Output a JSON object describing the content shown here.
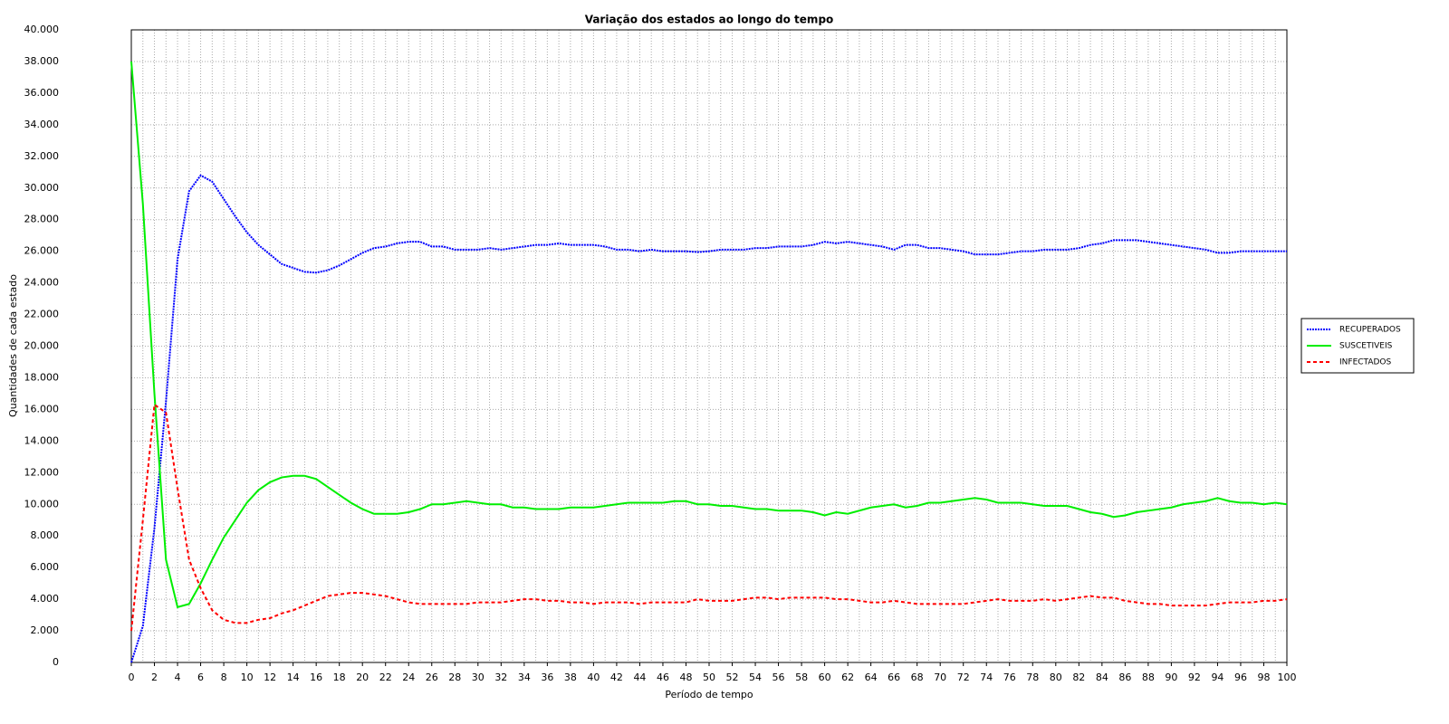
{
  "chart_data": {
    "type": "line",
    "title": "Variação dos estados ao longo do tempo",
    "x_label": "Período de tempo",
    "y_label": "Quantidades de cada estado",
    "x": [
      0,
      1,
      2,
      3,
      4,
      5,
      6,
      7,
      8,
      9,
      10,
      11,
      12,
      13,
      14,
      15,
      16,
      17,
      18,
      19,
      20,
      21,
      22,
      23,
      24,
      25,
      26,
      27,
      28,
      29,
      30,
      31,
      32,
      33,
      34,
      35,
      36,
      37,
      38,
      39,
      40,
      41,
      42,
      43,
      44,
      45,
      46,
      47,
      48,
      49,
      50,
      51,
      52,
      53,
      54,
      55,
      56,
      57,
      58,
      59,
      60,
      61,
      62,
      63,
      64,
      65,
      66,
      67,
      68,
      69,
      70,
      71,
      72,
      73,
      74,
      75,
      76,
      77,
      78,
      79,
      80,
      81,
      82,
      83,
      84,
      85,
      86,
      87,
      88,
      89,
      90,
      91,
      92,
      93,
      94,
      95,
      96,
      97,
      98,
      99,
      100
    ],
    "xlim": [
      0,
      100
    ],
    "xticks": [
      0,
      2,
      4,
      6,
      8,
      10,
      12,
      14,
      16,
      18,
      20,
      22,
      24,
      26,
      28,
      30,
      32,
      34,
      36,
      38,
      40,
      42,
      44,
      46,
      48,
      50,
      52,
      54,
      56,
      58,
      60,
      62,
      64,
      66,
      68,
      70,
      72,
      74,
      76,
      78,
      80,
      82,
      84,
      86,
      88,
      90,
      92,
      94,
      96,
      98,
      100
    ],
    "ylim": [
      0,
      40000
    ],
    "yticks": [
      0,
      {
        "value": 2000,
        "label": "2.000"
      },
      {
        "value": 4000,
        "label": "4.000"
      },
      {
        "value": 6000,
        "label": "6.000"
      },
      {
        "value": 8000,
        "label": "8.000"
      },
      {
        "value": 10000,
        "label": "10.000"
      },
      {
        "value": 12000,
        "label": "12.000"
      },
      {
        "value": 14000,
        "label": "14.000"
      },
      {
        "value": 16000,
        "label": "16.000"
      },
      {
        "value": 18000,
        "label": "18.000"
      },
      {
        "value": 20000,
        "label": "20.000"
      },
      {
        "value": 22000,
        "label": "22.000"
      },
      {
        "value": 24000,
        "label": "24.000"
      },
      {
        "value": 26000,
        "label": "26.000"
      },
      {
        "value": 28000,
        "label": "28.000"
      },
      {
        "value": 30000,
        "label": "30.000"
      },
      {
        "value": 32000,
        "label": "32.000"
      },
      {
        "value": 34000,
        "label": "34.000"
      },
      {
        "value": 36000,
        "label": "36.000"
      },
      {
        "value": 38000,
        "label": "38.000"
      },
      {
        "value": 40000,
        "label": "40.000"
      }
    ],
    "grid": true,
    "legend": "right",
    "series": [
      {
        "name": "RECUPERADOS",
        "color": "#0000ff",
        "line_style": "dotted",
        "values": [
          0,
          2300,
          8500,
          16500,
          25500,
          29800,
          30800,
          30400,
          29300,
          28200,
          27200,
          26400,
          25800,
          25200,
          24950,
          24700,
          24650,
          24800,
          25100,
          25500,
          25900,
          26200,
          26300,
          26500,
          26600,
          26600,
          26300,
          26300,
          26100,
          26100,
          26100,
          26200,
          26100,
          26200,
          26300,
          26400,
          26400,
          26500,
          26400,
          26400,
          26400,
          26300,
          26100,
          26100,
          26000,
          26100,
          26000,
          26000,
          26000,
          25950,
          26000,
          26100,
          26100,
          26100,
          26200,
          26200,
          26300,
          26300,
          26300,
          26400,
          26600,
          26500,
          26600,
          26500,
          26400,
          26300,
          26100,
          26400,
          26400,
          26200,
          26200,
          26100,
          26000,
          25800,
          25800,
          25800,
          25900,
          26000,
          26000,
          26100,
          26100,
          26100,
          26200,
          26400,
          26500,
          26700,
          26700,
          26700,
          26600,
          26500,
          26400,
          26300,
          26200,
          26100,
          25900,
          25900,
          26000,
          26000,
          26000,
          26000,
          26000
        ]
      },
      {
        "name": "SUSCETIVEIS",
        "color": "#00ee00",
        "line_style": "solid",
        "values": [
          38000,
          29000,
          17000,
          6500,
          3500,
          3700,
          5000,
          6500,
          7900,
          9000,
          10100,
          10900,
          11400,
          11700,
          11800,
          11800,
          11600,
          11100,
          10600,
          10100,
          9700,
          9400,
          9400,
          9400,
          9500,
          9700,
          10000,
          10000,
          10100,
          10200,
          10100,
          10000,
          10000,
          9800,
          9800,
          9700,
          9700,
          9700,
          9800,
          9800,
          9800,
          9900,
          10000,
          10100,
          10100,
          10100,
          10100,
          10200,
          10200,
          10000,
          10000,
          9900,
          9900,
          9800,
          9700,
          9700,
          9600,
          9600,
          9600,
          9500,
          9300,
          9500,
          9400,
          9600,
          9800,
          9900,
          10000,
          9800,
          9900,
          10100,
          10100,
          10200,
          10300,
          10400,
          10300,
          10100,
          10100,
          10100,
          10000,
          9900,
          9900,
          9900,
          9700,
          9500,
          9400,
          9200,
          9300,
          9500,
          9600,
          9700,
          9800,
          10000,
          10100,
          10200,
          10400,
          10200,
          10100,
          10100,
          10000,
          10100,
          10000
        ]
      },
      {
        "name": "INFECTADOS",
        "color": "#ff0000",
        "line_style": "dashed",
        "values": [
          2000,
          9000,
          16300,
          15800,
          11000,
          6500,
          4700,
          3300,
          2700,
          2500,
          2500,
          2700,
          2800,
          3100,
          3300,
          3600,
          3900,
          4200,
          4300,
          4400,
          4400,
          4300,
          4200,
          4000,
          3800,
          3700,
          3700,
          3700,
          3700,
          3700,
          3800,
          3800,
          3800,
          3900,
          4000,
          4000,
          3900,
          3900,
          3800,
          3800,
          3700,
          3800,
          3800,
          3800,
          3700,
          3800,
          3800,
          3800,
          3800,
          4000,
          3900,
          3900,
          3900,
          4000,
          4100,
          4100,
          4000,
          4100,
          4100,
          4100,
          4100,
          4000,
          4000,
          3900,
          3800,
          3800,
          3900,
          3800,
          3700,
          3700,
          3700,
          3700,
          3700,
          3800,
          3900,
          4000,
          3900,
          3900,
          3900,
          4000,
          3900,
          4000,
          4100,
          4200,
          4100,
          4100,
          3900,
          3800,
          3700,
          3700,
          3600,
          3600,
          3600,
          3600,
          3700,
          3800,
          3800,
          3800,
          3900,
          3900,
          4000
        ]
      }
    ]
  }
}
